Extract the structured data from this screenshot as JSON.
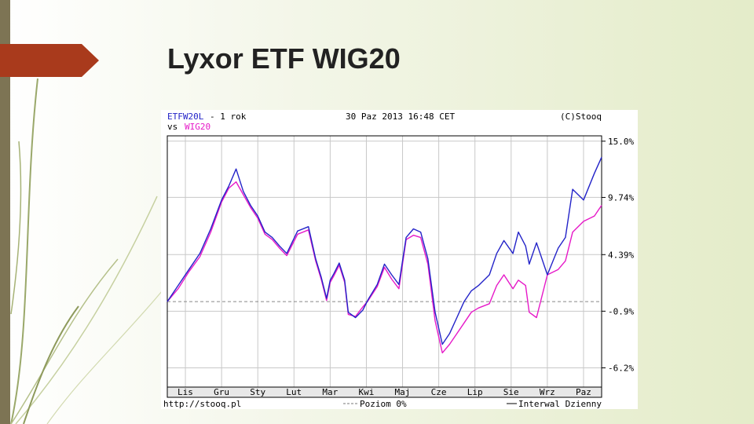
{
  "slide": {
    "title": "Lyxor ETF WIG20"
  },
  "chart_header": {
    "ticker": "ETFW20L",
    "period": " - 1 rok",
    "vs_label": "vs",
    "compare_ticker": "WIG20",
    "datetime": "30 Paz 2013 16:48 CET",
    "copyright": "(C)Stooq"
  },
  "chart_footer": {
    "url": "http://stooq.pl",
    "level_legend": "Poziom 0%",
    "interval_legend": "Interwal Dzienny"
  },
  "colors": {
    "etf_series": "#2323c8",
    "wig20_series": "#e619c8",
    "accent_arrow": "#a93a1c",
    "side_bar": "#7d7454"
  },
  "chart_data": {
    "type": "line",
    "y_unit": "%",
    "ylim": [
      -8.0,
      15.5
    ],
    "y_ticks": [
      "15.0%",
      "9.74%",
      "4.39%",
      "-0.9%",
      "-6.2%"
    ],
    "y_tick_values": [
      15.0,
      9.74,
      4.39,
      -0.9,
      -6.2
    ],
    "x_ticks": [
      "Lis",
      "Gru",
      "Sty",
      "Lut",
      "Mar",
      "Kwi",
      "Maj",
      "Cze",
      "Lip",
      "Sie",
      "Wrz",
      "Paz"
    ],
    "x_range": [
      0,
      12
    ],
    "reference_line": 0,
    "grid": true,
    "series": [
      {
        "name": "ETFW20L",
        "color": "#2323c8",
        "x": [
          0,
          0.3,
          0.6,
          0.9,
          1.2,
          1.5,
          1.7,
          1.9,
          2.1,
          2.3,
          2.5,
          2.7,
          2.9,
          3.1,
          3.3,
          3.6,
          3.9,
          4.1,
          4.25,
          4.4,
          4.5,
          4.6,
          4.75,
          4.9,
          5.0,
          5.2,
          5.4,
          5.55,
          5.8,
          6.0,
          6.2,
          6.4,
          6.6,
          6.8,
          7.0,
          7.2,
          7.4,
          7.6,
          7.8,
          8.0,
          8.2,
          8.4,
          8.6,
          8.9,
          9.1,
          9.3,
          9.55,
          9.7,
          9.9,
          10.0,
          10.2,
          10.5,
          10.8,
          11.0,
          11.2,
          11.5,
          11.8,
          12.0
        ],
        "y": [
          0.0,
          1.5,
          3.0,
          4.5,
          6.8,
          9.5,
          10.8,
          12.4,
          10.3,
          9.0,
          8.0,
          6.5,
          6.0,
          5.2,
          4.5,
          6.6,
          7.0,
          4.0,
          2.3,
          0.3,
          2.0,
          2.6,
          3.6,
          2.0,
          -1.0,
          -1.5,
          -0.8,
          0.2,
          1.6,
          3.5,
          2.5,
          1.6,
          6.0,
          6.8,
          6.5,
          4.0,
          -1.0,
          -4.0,
          -3.0,
          -1.5,
          0.0,
          1.0,
          1.5,
          2.5,
          4.5,
          5.7,
          4.5,
          6.5,
          5.2,
          3.5,
          5.5,
          2.5,
          5.0,
          6.0,
          10.5,
          9.5,
          12.0,
          13.5
        ]
      },
      {
        "name": "WIG20",
        "color": "#e619c8",
        "x": [
          0,
          0.3,
          0.6,
          0.9,
          1.2,
          1.5,
          1.7,
          1.9,
          2.1,
          2.3,
          2.5,
          2.7,
          2.9,
          3.1,
          3.3,
          3.6,
          3.9,
          4.1,
          4.25,
          4.4,
          4.5,
          4.6,
          4.75,
          4.9,
          5.0,
          5.2,
          5.4,
          5.55,
          5.8,
          6.0,
          6.2,
          6.4,
          6.6,
          6.8,
          7.0,
          7.2,
          7.4,
          7.6,
          7.8,
          8.0,
          8.2,
          8.4,
          8.6,
          8.9,
          9.1,
          9.3,
          9.55,
          9.7,
          9.9,
          10.0,
          10.2,
          10.5,
          10.8,
          11.0,
          11.2,
          11.5,
          11.8,
          12.0
        ],
        "y": [
          0.0,
          1.2,
          2.8,
          4.2,
          6.5,
          9.3,
          10.6,
          11.2,
          10.0,
          8.8,
          7.8,
          6.3,
          5.8,
          5.0,
          4.3,
          6.3,
          6.7,
          3.8,
          2.1,
          0.1,
          1.8,
          2.4,
          3.4,
          1.8,
          -1.2,
          -1.4,
          -0.5,
          0.1,
          1.4,
          3.2,
          2.1,
          1.2,
          5.8,
          6.2,
          6.0,
          3.5,
          -1.8,
          -4.8,
          -4.0,
          -3.0,
          -2.0,
          -1.0,
          -0.6,
          -0.2,
          1.5,
          2.5,
          1.2,
          2.0,
          1.5,
          -1.0,
          -1.5,
          2.5,
          3.0,
          3.8,
          6.5,
          7.5,
          8.0,
          9.0
        ]
      }
    ]
  }
}
